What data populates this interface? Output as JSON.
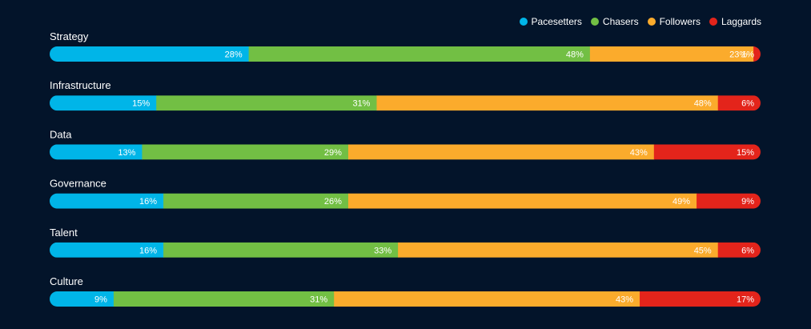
{
  "chart_data": {
    "type": "bar",
    "orientation": "horizontal-stacked-100",
    "categories": [
      "Strategy",
      "Infrastructure",
      "Data",
      "Governance",
      "Talent",
      "Culture"
    ],
    "series": [
      {
        "name": "Pacesetters",
        "color": "#00b5e8",
        "values": [
          28,
          15,
          13,
          16,
          16,
          9
        ]
      },
      {
        "name": "Chasers",
        "color": "#72bf44",
        "values": [
          48,
          31,
          29,
          26,
          33,
          31
        ]
      },
      {
        "name": "Followers",
        "color": "#fbab2c",
        "values": [
          23,
          48,
          43,
          49,
          45,
          43
        ]
      },
      {
        "name": "Laggards",
        "color": "#e3241b",
        "values": [
          1,
          6,
          15,
          9,
          6,
          17
        ]
      }
    ],
    "value_suffix": "%",
    "legend_position": "top-right",
    "grid": false
  },
  "colors": {
    "background": "#03142a",
    "text": "#ffffff"
  }
}
